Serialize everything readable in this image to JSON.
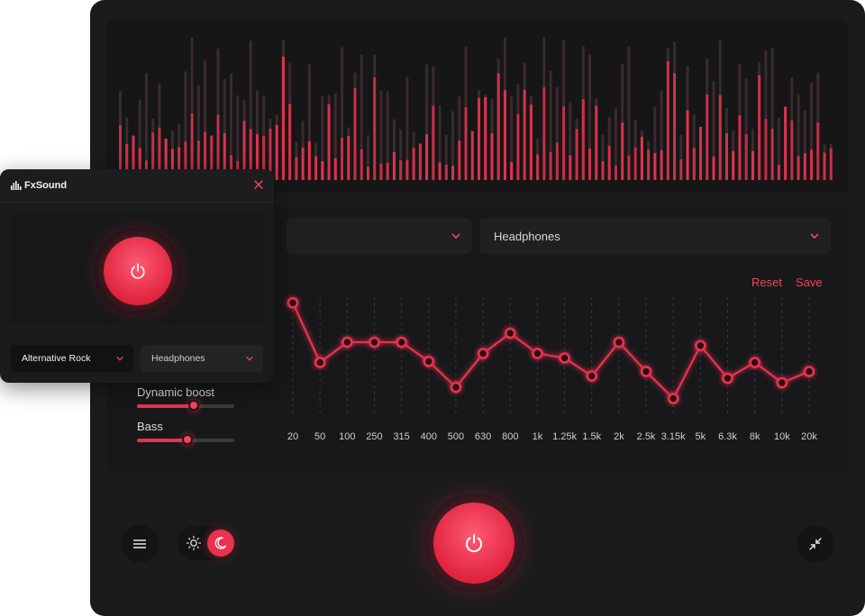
{
  "colors": {
    "accent": "#e8324f",
    "bar_dim": "#3a2a2e",
    "background": "#1b1b1d"
  },
  "main": {
    "preset_dropdown": {
      "value": "",
      "icon": "chevron-down-icon"
    },
    "output_dropdown": {
      "value": "Headphones",
      "icon": "chevron-down-icon"
    },
    "reset_label": "Reset",
    "save_label": "Save",
    "sliders": [
      {
        "label": "Dynamic boost",
        "level": 0.58
      },
      {
        "label": "Bass",
        "level": 0.52
      }
    ],
    "eq_bands": [
      "20",
      "50",
      "100",
      "250",
      "315",
      "400",
      "500",
      "630",
      "800",
      "1k",
      "1.25k",
      "1.5k",
      "2k",
      "2.5k",
      "3.15k",
      "5k",
      "6.3k",
      "8k",
      "10k",
      "20k"
    ],
    "eq_levels": [
      0.95,
      0.42,
      0.6,
      0.6,
      0.6,
      0.43,
      0.2,
      0.5,
      0.68,
      0.5,
      0.46,
      0.3,
      0.6,
      0.34,
      0.1,
      0.57,
      0.28,
      0.42,
      0.24,
      0.34
    ],
    "theme": {
      "light_icon": "sun-icon",
      "dark_icon": "moon-icon",
      "selected": "dark"
    },
    "menu_icon": "menu-icon",
    "power_icon": "power-icon",
    "collapse_icon": "collapse-icon"
  },
  "mini": {
    "title": "FxSound",
    "logo_icon": "fxsound-logo-icon",
    "close_icon": "close-icon",
    "power_icon": "power-icon",
    "preset_dropdown": {
      "value": "Alternative Rock",
      "icon": "chevron-down-icon"
    },
    "output_dropdown": {
      "value": "Headphones",
      "icon": "chevron-down-icon"
    }
  }
}
